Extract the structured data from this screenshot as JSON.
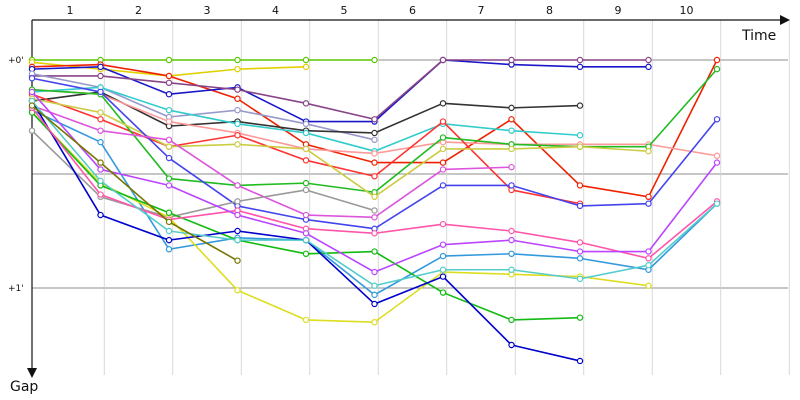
{
  "chart_data": {
    "type": "line",
    "title": "",
    "xlabel": "Time",
    "ylabel": "Gap",
    "x_ticks": [
      "1",
      "2",
      "3",
      "4",
      "5",
      "6",
      "7",
      "8",
      "9",
      "10"
    ],
    "y_ticks": [
      "+0'",
      "+1'"
    ],
    "xlim": [
      0.5,
      11.3
    ],
    "ylim": [
      -0.05,
      1.45
    ],
    "grid": true,
    "legend": "none",
    "series": [
      {
        "color": "#5bc800",
        "values": [
          0.0,
          0.0,
          0.0,
          0.0,
          0.0,
          0.0,
          null,
          null,
          null,
          null,
          null
        ]
      },
      {
        "color": "#e0d000",
        "values": [
          0.01,
          0.04,
          0.07,
          0.04,
          0.03,
          null,
          null,
          null,
          null,
          null,
          null
        ]
      },
      {
        "color": "#ee2200",
        "values": [
          0.03,
          0.02,
          0.07,
          0.17,
          0.37,
          0.45,
          0.45,
          0.26,
          0.55,
          0.6,
          0.0
        ]
      },
      {
        "color": "#1a16c8",
        "values": [
          0.04,
          0.03,
          0.15,
          0.12,
          0.27,
          0.27,
          0.0,
          0.02,
          0.03,
          0.03,
          null
        ]
      },
      {
        "color": "#884488",
        "values": [
          0.07,
          0.07,
          0.1,
          0.13,
          0.19,
          0.26,
          0.0,
          0.0,
          0.0,
          0.0,
          null
        ]
      },
      {
        "color": "#9999cc",
        "values": [
          0.06,
          0.12,
          0.25,
          0.22,
          0.28,
          0.35,
          null,
          null,
          null,
          null,
          null
        ]
      },
      {
        "color": "#333333",
        "values": [
          0.18,
          0.14,
          0.29,
          0.27,
          0.31,
          0.32,
          0.19,
          0.21,
          0.2,
          null,
          null
        ]
      },
      {
        "color": "#33cccc",
        "values": [
          0.14,
          0.12,
          0.22,
          0.28,
          0.32,
          0.4,
          0.28,
          0.31,
          0.33,
          null,
          null
        ]
      },
      {
        "color": "#ff9999",
        "values": [
          0.13,
          0.15,
          0.27,
          0.32,
          0.39,
          0.41,
          0.36,
          0.37,
          0.37,
          0.37,
          0.42
        ]
      },
      {
        "color": "#ff3333",
        "values": [
          0.15,
          0.26,
          0.38,
          0.33,
          0.44,
          0.51,
          0.27,
          0.57,
          0.63,
          null,
          null
        ]
      },
      {
        "color": "#22bb22",
        "values": [
          0.13,
          0.15,
          0.52,
          0.55,
          0.54,
          0.58,
          0.34,
          0.37,
          0.38,
          0.38,
          0.04
        ]
      },
      {
        "color": "#cccc44",
        "values": [
          0.17,
          0.23,
          0.38,
          0.37,
          0.39,
          0.6,
          0.39,
          0.39,
          0.38,
          0.4,
          null
        ]
      },
      {
        "color": "#4444ee",
        "values": [
          0.08,
          0.14,
          0.43,
          0.64,
          0.7,
          0.74,
          0.55,
          0.55,
          0.64,
          0.63,
          0.26
        ]
      },
      {
        "color": "#dd55dd",
        "values": [
          0.2,
          0.31,
          0.35,
          0.55,
          0.68,
          0.69,
          0.48,
          0.47,
          null,
          null,
          null
        ]
      },
      {
        "color": "#3399dd",
        "values": [
          0.22,
          0.36,
          0.83,
          0.78,
          0.79,
          1.03,
          0.86,
          0.85,
          0.87,
          0.92,
          0.63
        ]
      },
      {
        "color": "#999999",
        "values": [
          0.31,
          0.6,
          0.69,
          0.62,
          0.57,
          0.66,
          null,
          null,
          null,
          null,
          null
        ]
      },
      {
        "color": "#dddd22",
        "values": [
          0.23,
          0.54,
          0.69,
          1.01,
          1.14,
          1.15,
          0.93,
          0.94,
          0.95,
          0.99,
          null
        ]
      },
      {
        "color": "#11bb11",
        "values": [
          0.23,
          0.55,
          0.67,
          0.79,
          0.85,
          0.84,
          1.02,
          1.14,
          1.13,
          null,
          null
        ]
      },
      {
        "color": "#0000cc",
        "values": [
          0.18,
          0.68,
          0.79,
          0.75,
          0.79,
          1.07,
          0.95,
          1.25,
          1.32,
          null,
          null
        ]
      },
      {
        "color": "#ff55aa",
        "values": [
          0.21,
          0.59,
          0.7,
          0.66,
          0.74,
          0.76,
          0.72,
          0.75,
          0.8,
          0.87,
          0.62
        ]
      },
      {
        "color": "#bb44ff",
        "values": [
          0.14,
          0.48,
          0.55,
          0.68,
          0.76,
          0.93,
          0.81,
          0.79,
          0.84,
          0.84,
          0.45
        ]
      },
      {
        "color": "#55cccc",
        "values": [
          0.18,
          0.53,
          0.75,
          0.79,
          0.79,
          0.99,
          0.92,
          0.92,
          0.96,
          0.9,
          0.63
        ]
      },
      {
        "color": "#777700",
        "values": [
          0.2,
          0.45,
          0.71,
          0.88,
          null,
          null,
          null,
          null,
          null,
          null,
          null
        ]
      }
    ]
  }
}
